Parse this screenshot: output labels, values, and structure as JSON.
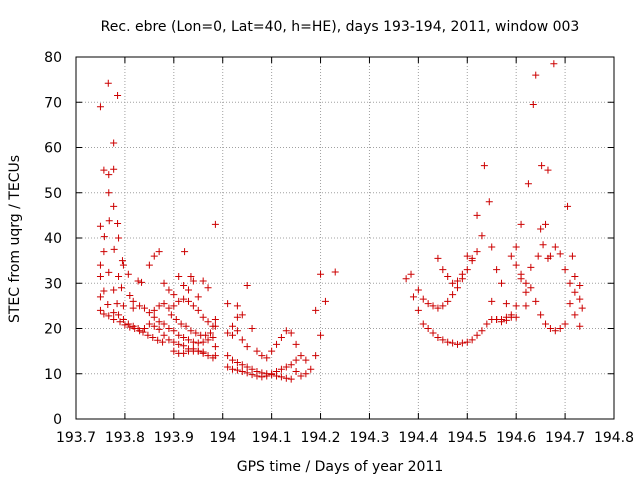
{
  "chart_data": {
    "type": "scatter",
    "title": "Rec. ebre (Lon=0, Lat=40, h=HE), days 193-194, 2011, window 003",
    "xlabel": "GPS time / Days of year 2011",
    "ylabel": "STEC from uqrg / TECUs",
    "xlim": [
      193.7,
      194.8
    ],
    "ylim": [
      0,
      80
    ],
    "xticks": [
      193.7,
      193.8,
      193.9,
      194.0,
      194.1,
      194.2,
      194.3,
      194.4,
      194.5,
      194.6,
      194.7,
      194.8
    ],
    "xtick_labels": [
      "193.7",
      "193.8",
      "193.9",
      "194",
      "194.1",
      "194.2",
      "194.3",
      "194.4",
      "194.5",
      "194.6",
      "194.7",
      "194.8"
    ],
    "yticks": [
      0,
      10,
      20,
      30,
      40,
      50,
      60,
      70,
      80
    ],
    "ytick_labels": [
      "0",
      "10",
      "20",
      "30",
      "40",
      "50",
      "60",
      "70",
      "80"
    ],
    "grid": true,
    "legend": "none",
    "marker": "plus",
    "color": "#cc0000",
    "series": [
      {
        "points": [
          [
            193.75,
            69.0
          ],
          [
            193.766,
            74.2
          ],
          [
            193.785,
            71.5
          ],
          [
            193.777,
            61.0
          ],
          [
            193.777,
            55.2
          ],
          [
            193.757,
            55.0
          ],
          [
            193.767,
            54.0
          ],
          [
            193.767,
            50.0
          ],
          [
            193.777,
            47.0
          ],
          [
            193.75,
            42.6
          ],
          [
            193.768,
            43.8
          ],
          [
            193.785,
            43.2
          ],
          [
            193.787,
            40.0
          ],
          [
            193.758,
            40.3
          ],
          [
            193.757,
            37.0
          ],
          [
            193.778,
            37.5
          ],
          [
            193.795,
            35.0
          ],
          [
            193.797,
            34.0
          ],
          [
            193.75,
            34.0
          ],
          [
            193.75,
            31.5
          ],
          [
            193.767,
            32.4
          ],
          [
            193.787,
            31.5
          ],
          [
            193.807,
            32.0
          ],
          [
            193.827,
            30.5
          ],
          [
            193.834,
            30.2
          ],
          [
            193.757,
            28.3
          ],
          [
            193.777,
            28.5
          ],
          [
            193.793,
            29.0
          ],
          [
            193.81,
            27.3
          ],
          [
            193.817,
            26.0
          ],
          [
            193.75,
            27.0
          ],
          [
            193.765,
            25.3
          ],
          [
            193.784,
            25.5
          ],
          [
            193.797,
            25.0
          ],
          [
            193.817,
            24.5
          ],
          [
            193.83,
            25.0
          ],
          [
            193.75,
            24.0
          ],
          [
            193.757,
            23.2
          ],
          [
            193.767,
            22.8
          ],
          [
            193.777,
            23.5
          ],
          [
            193.787,
            23.0
          ],
          [
            193.797,
            22.0
          ],
          [
            193.807,
            21.0
          ],
          [
            193.817,
            20.5
          ],
          [
            193.827,
            20.0
          ],
          [
            193.837,
            19.2
          ],
          [
            193.847,
            18.5
          ],
          [
            193.857,
            18.0
          ],
          [
            193.867,
            17.4
          ],
          [
            193.877,
            17.0
          ],
          [
            193.777,
            22.0
          ],
          [
            193.79,
            21.5
          ],
          [
            193.8,
            20.8
          ],
          [
            193.81,
            20.3
          ],
          [
            193.82,
            20.0
          ],
          [
            193.83,
            19.5
          ],
          [
            193.84,
            20.0
          ],
          [
            193.85,
            21.0
          ],
          [
            193.86,
            20.5
          ],
          [
            193.87,
            19.8
          ],
          [
            193.88,
            18.5
          ],
          [
            193.89,
            17.5
          ],
          [
            193.9,
            17.0
          ],
          [
            193.91,
            16.5
          ],
          [
            193.92,
            16.2
          ],
          [
            193.93,
            15.5
          ],
          [
            193.94,
            15.0
          ],
          [
            193.95,
            15.0
          ],
          [
            193.96,
            14.5
          ],
          [
            193.97,
            14.0
          ],
          [
            193.98,
            13.5
          ],
          [
            193.84,
            24.5
          ],
          [
            193.85,
            23.5
          ],
          [
            193.86,
            22.5
          ],
          [
            193.87,
            21.5
          ],
          [
            193.88,
            21.0
          ],
          [
            193.89,
            20.0
          ],
          [
            193.9,
            19.5
          ],
          [
            193.91,
            18.5
          ],
          [
            193.92,
            18.0
          ],
          [
            193.93,
            17.5
          ],
          [
            193.94,
            17.0
          ],
          [
            193.95,
            16.8
          ],
          [
            193.96,
            17.0
          ],
          [
            193.97,
            17.5
          ],
          [
            193.98,
            18.0
          ],
          [
            193.86,
            24.0
          ],
          [
            193.87,
            25.0
          ],
          [
            193.88,
            25.5
          ],
          [
            193.89,
            24.5
          ],
          [
            193.9,
            25.0
          ],
          [
            193.91,
            26.0
          ],
          [
            193.92,
            26.5
          ],
          [
            193.93,
            26.0
          ],
          [
            193.94,
            25.0
          ],
          [
            193.95,
            24.0
          ],
          [
            193.96,
            22.5
          ],
          [
            193.97,
            21.5
          ],
          [
            193.98,
            20.5
          ],
          [
            193.85,
            34.0
          ],
          [
            193.86,
            36.0
          ],
          [
            193.87,
            37.0
          ],
          [
            193.88,
            30.0
          ],
          [
            193.89,
            28.5
          ],
          [
            193.9,
            27.5
          ],
          [
            193.91,
            31.5
          ],
          [
            193.922,
            37.0
          ],
          [
            193.935,
            31.5
          ],
          [
            193.92,
            29.5
          ],
          [
            193.93,
            28.5
          ],
          [
            193.94,
            30.5
          ],
          [
            193.95,
            27.0
          ],
          [
            193.96,
            30.5
          ],
          [
            193.97,
            29.0
          ],
          [
            193.895,
            23.0
          ],
          [
            193.905,
            22.0
          ],
          [
            193.915,
            21.0
          ],
          [
            193.925,
            20.5
          ],
          [
            193.935,
            19.5
          ],
          [
            193.945,
            19.0
          ],
          [
            193.955,
            18.5
          ],
          [
            193.965,
            18.5
          ],
          [
            193.975,
            19.0
          ],
          [
            193.985,
            20.5
          ],
          [
            193.985,
            43.0
          ],
          [
            193.985,
            22.0
          ],
          [
            193.985,
            16.0
          ],
          [
            193.985,
            14.0
          ],
          [
            193.9,
            15.0
          ],
          [
            193.91,
            14.5
          ],
          [
            193.92,
            14.5
          ],
          [
            193.93,
            15.0
          ],
          [
            193.94,
            15.5
          ],
          [
            193.95,
            15.0
          ],
          [
            193.96,
            14.8
          ],
          [
            194.01,
            25.5
          ],
          [
            194.03,
            25.0
          ],
          [
            194.05,
            29.5
          ],
          [
            194.01,
            19.0
          ],
          [
            194.02,
            20.5
          ],
          [
            194.03,
            22.5
          ],
          [
            194.04,
            23.0
          ],
          [
            194.02,
            18.5
          ],
          [
            194.03,
            19.5
          ],
          [
            194.04,
            17.5
          ],
          [
            194.05,
            16.0
          ],
          [
            194.06,
            20.0
          ],
          [
            194.07,
            15.0
          ],
          [
            194.08,
            14.0
          ],
          [
            194.09,
            13.5
          ],
          [
            194.1,
            15.0
          ],
          [
            194.11,
            16.5
          ],
          [
            194.12,
            18.0
          ],
          [
            194.13,
            19.5
          ],
          [
            194.14,
            19.0
          ],
          [
            194.15,
            16.5
          ],
          [
            194.01,
            14.0
          ],
          [
            194.02,
            13.0
          ],
          [
            194.03,
            12.5
          ],
          [
            194.04,
            12.0
          ],
          [
            194.05,
            11.5
          ],
          [
            194.06,
            11.0
          ],
          [
            194.07,
            10.5
          ],
          [
            194.08,
            10.2
          ],
          [
            194.09,
            10.0
          ],
          [
            194.1,
            9.8
          ],
          [
            194.11,
            9.5
          ],
          [
            194.12,
            9.3
          ],
          [
            194.13,
            9.0
          ],
          [
            194.14,
            8.8
          ],
          [
            194.01,
            11.5
          ],
          [
            194.02,
            11.0
          ],
          [
            194.03,
            10.8
          ],
          [
            194.04,
            10.5
          ],
          [
            194.05,
            10.2
          ],
          [
            194.06,
            9.8
          ],
          [
            194.07,
            9.5
          ],
          [
            194.08,
            9.3
          ],
          [
            194.09,
            9.5
          ],
          [
            194.1,
            10.0
          ],
          [
            194.11,
            10.5
          ],
          [
            194.12,
            11.0
          ],
          [
            194.13,
            11.5
          ],
          [
            194.14,
            12.0
          ],
          [
            194.15,
            13.0
          ],
          [
            194.16,
            14.0
          ],
          [
            194.17,
            13.0
          ],
          [
            194.18,
            11.0
          ],
          [
            194.19,
            14.0
          ],
          [
            194.2,
            18.5
          ],
          [
            194.19,
            24.0
          ],
          [
            194.21,
            26.0
          ],
          [
            194.2,
            32.0
          ],
          [
            194.23,
            32.5
          ],
          [
            194.15,
            10.5
          ],
          [
            194.16,
            9.5
          ],
          [
            194.17,
            10.0
          ],
          [
            194.375,
            31.0
          ],
          [
            194.385,
            32.0
          ],
          [
            194.39,
            27.0
          ],
          [
            194.4,
            28.5
          ],
          [
            194.41,
            26.5
          ],
          [
            194.42,
            25.5
          ],
          [
            194.43,
            25.0
          ],
          [
            194.44,
            24.5
          ],
          [
            194.45,
            25.0
          ],
          [
            194.46,
            26.0
          ],
          [
            194.47,
            27.5
          ],
          [
            194.48,
            29.0
          ],
          [
            194.49,
            31.0
          ],
          [
            194.5,
            33.0
          ],
          [
            194.51,
            35.0
          ],
          [
            194.4,
            24.0
          ],
          [
            194.41,
            21.0
          ],
          [
            194.42,
            20.0
          ],
          [
            194.43,
            19.0
          ],
          [
            194.44,
            18.0
          ],
          [
            194.45,
            17.5
          ],
          [
            194.46,
            17.0
          ],
          [
            194.47,
            16.8
          ],
          [
            194.48,
            16.5
          ],
          [
            194.49,
            16.8
          ],
          [
            194.5,
            17.0
          ],
          [
            194.51,
            17.5
          ],
          [
            194.52,
            18.5
          ],
          [
            194.53,
            19.5
          ],
          [
            194.54,
            21.0
          ],
          [
            194.55,
            22.0
          ],
          [
            194.56,
            22.0
          ],
          [
            194.57,
            22.0
          ],
          [
            194.58,
            22.5
          ],
          [
            194.59,
            23.0
          ],
          [
            194.44,
            35.5
          ],
          [
            194.45,
            33.0
          ],
          [
            194.46,
            31.5
          ],
          [
            194.47,
            30.0
          ],
          [
            194.48,
            30.5
          ],
          [
            194.49,
            32.0
          ],
          [
            194.5,
            36.0
          ],
          [
            194.51,
            35.5
          ],
          [
            194.52,
            37.0
          ],
          [
            194.53,
            40.5
          ],
          [
            194.52,
            45.0
          ],
          [
            194.535,
            56.0
          ],
          [
            194.545,
            48.0
          ],
          [
            194.55,
            38.0
          ],
          [
            194.56,
            33.0
          ],
          [
            194.57,
            30.0
          ],
          [
            194.55,
            26.0
          ],
          [
            194.56,
            22.0
          ],
          [
            194.58,
            25.5
          ],
          [
            194.59,
            36.0
          ],
          [
            194.6,
            34.0
          ],
          [
            194.61,
            31.0
          ],
          [
            194.62,
            28.0
          ],
          [
            194.61,
            43.0
          ],
          [
            194.625,
            52.0
          ],
          [
            194.635,
            69.5
          ],
          [
            194.64,
            76.0
          ],
          [
            194.652,
            56.0
          ],
          [
            194.665,
            55.0
          ],
          [
            194.677,
            78.5
          ],
          [
            194.65,
            42.0
          ],
          [
            194.66,
            43.0
          ],
          [
            194.67,
            36.0
          ],
          [
            194.68,
            38.0
          ],
          [
            194.69,
            36.5
          ],
          [
            194.705,
            47.0
          ],
          [
            194.7,
            33.0
          ],
          [
            194.71,
            30.0
          ],
          [
            194.72,
            28.0
          ],
          [
            194.73,
            29.5
          ],
          [
            194.73,
            26.5
          ],
          [
            194.735,
            24.5
          ],
          [
            194.73,
            20.5
          ],
          [
            194.72,
            23.0
          ],
          [
            194.71,
            25.5
          ],
          [
            194.7,
            21.0
          ],
          [
            194.69,
            20.0
          ],
          [
            194.68,
            19.5
          ],
          [
            194.67,
            20.0
          ],
          [
            194.66,
            21.0
          ],
          [
            194.65,
            23.0
          ],
          [
            194.64,
            26.0
          ],
          [
            194.63,
            29.0
          ],
          [
            194.62,
            25.0
          ],
          [
            194.6,
            22.5
          ],
          [
            194.57,
            21.5
          ],
          [
            194.58,
            21.8
          ],
          [
            194.59,
            22.5
          ],
          [
            194.6,
            25.0
          ],
          [
            194.6,
            38.0
          ],
          [
            194.61,
            32.0
          ],
          [
            194.62,
            30.0
          ],
          [
            194.63,
            33.5
          ],
          [
            194.645,
            36.0
          ],
          [
            194.655,
            38.5
          ],
          [
            194.665,
            35.5
          ],
          [
            194.715,
            36.0
          ],
          [
            194.72,
            31.5
          ]
        ]
      }
    ]
  }
}
